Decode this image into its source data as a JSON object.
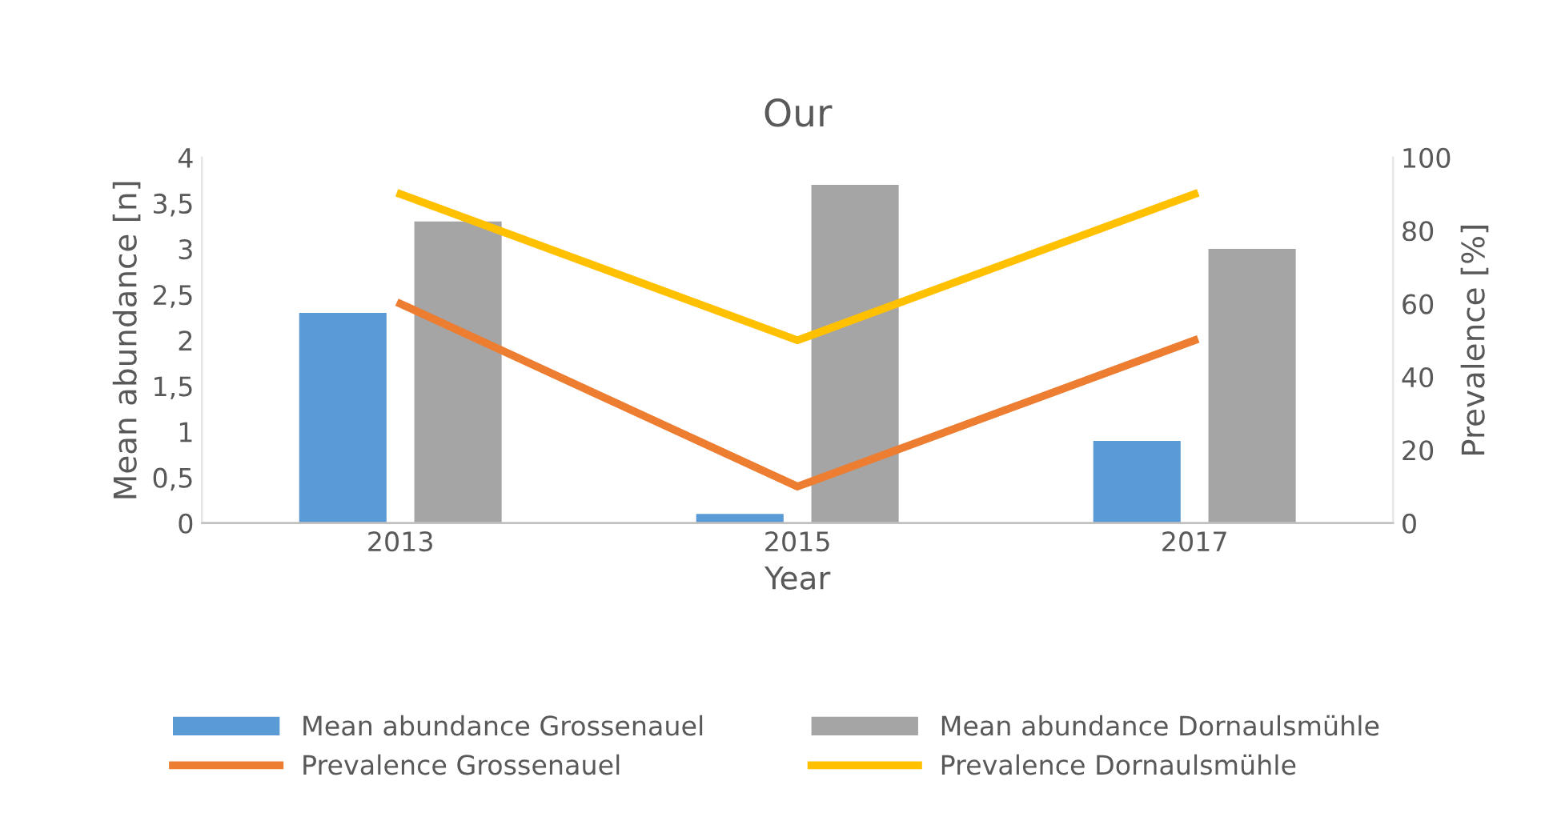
{
  "chart_data": {
    "type": "bar",
    "title": "Our",
    "xlabel": "Year",
    "ylabel": "Mean abundance [n]",
    "y2label": "Prevalence [%]",
    "categories": [
      "2013",
      "2015",
      "2017"
    ],
    "series": [
      {
        "name": "Mean abundance Grossenauel",
        "color": "#5b9bd5",
        "values": [
          2.3,
          0.1,
          0.9
        ]
      },
      {
        "name": "Mean abundance Dornaulsmühle",
        "color": "#a5a5a5",
        "values": [
          3.3,
          3.7,
          3.0
        ]
      },
      {
        "name": "Prevalence Grossenauel",
        "type": "line",
        "axis": "y2",
        "color": "#ed7d31",
        "values": [
          60,
          10,
          50
        ]
      },
      {
        "name": "Prevalence Dornaulsmühle",
        "type": "line",
        "axis": "y2",
        "color": "#ffc000",
        "values": [
          90,
          50,
          90
        ]
      }
    ],
    "ylim": [
      0,
      4
    ],
    "yticks": [
      0,
      {
        "value": 0.5,
        "label": "0,5"
      },
      1,
      {
        "value": 1.5,
        "label": "1,5"
      },
      2,
      {
        "value": 2.5,
        "label": "2,5"
      },
      3,
      {
        "value": 3.5,
        "label": "3,5"
      },
      4
    ],
    "y2lim": [
      0,
      100
    ],
    "y2ticks": [
      0,
      20,
      40,
      60,
      80,
      100
    ],
    "grid": false,
    "legend": "bottom",
    "marker": "none",
    "line_style": "solid"
  }
}
